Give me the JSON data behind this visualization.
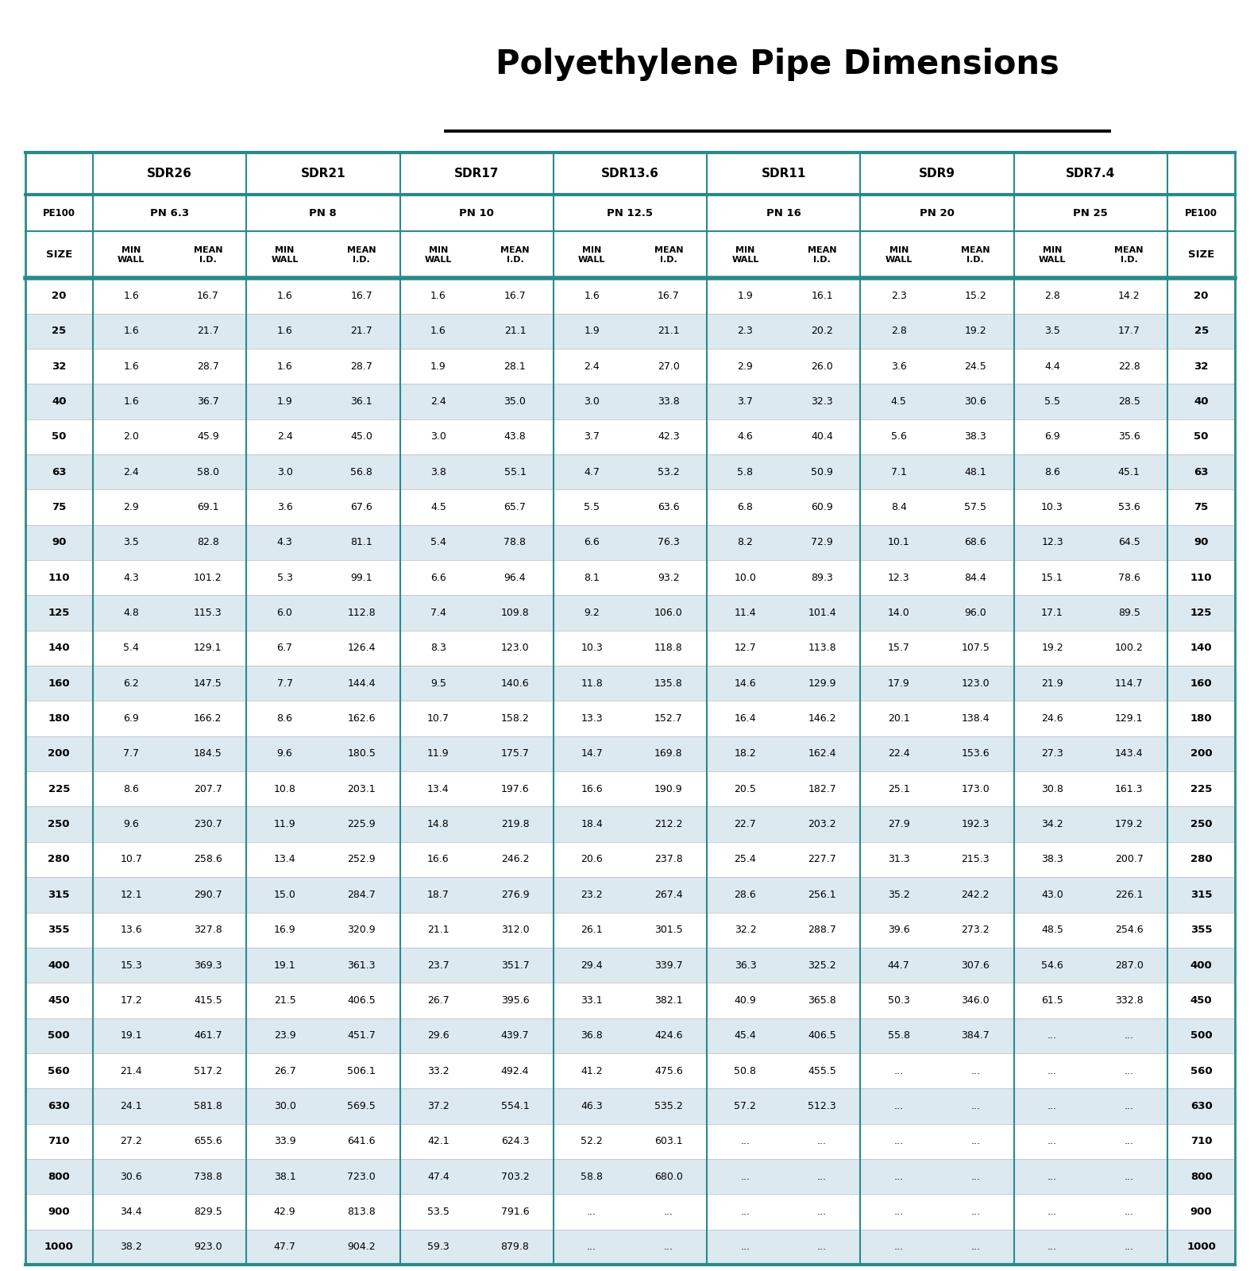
{
  "title": "Polyethylene Pipe Dimensions",
  "sdr_headers": [
    "SDR26",
    "SDR21",
    "SDR17",
    "SDR13.6",
    "SDR11",
    "SDR9",
    "SDR7.4"
  ],
  "pn_headers": [
    "PN 6.3",
    "PN 8",
    "PN 10",
    "PN 12.5",
    "PN 16",
    "PN 20",
    "PN 25"
  ],
  "sizes": [
    20,
    25,
    32,
    40,
    50,
    63,
    75,
    90,
    110,
    125,
    140,
    160,
    180,
    200,
    225,
    250,
    280,
    315,
    355,
    400,
    450,
    500,
    560,
    630,
    710,
    800,
    900,
    1000
  ],
  "data": [
    [
      1.6,
      16.7,
      1.6,
      16.7,
      1.6,
      16.7,
      1.6,
      16.7,
      1.9,
      16.1,
      2.3,
      15.2,
      2.8,
      14.2
    ],
    [
      1.6,
      21.7,
      1.6,
      21.7,
      1.6,
      21.1,
      1.9,
      21.1,
      2.3,
      20.2,
      2.8,
      19.2,
      3.5,
      17.7
    ],
    [
      1.6,
      28.7,
      1.6,
      28.7,
      1.9,
      28.1,
      2.4,
      27.0,
      2.9,
      26.0,
      3.6,
      24.5,
      4.4,
      22.8
    ],
    [
      1.6,
      36.7,
      1.9,
      36.1,
      2.4,
      35.0,
      3.0,
      33.8,
      3.7,
      32.3,
      4.5,
      30.6,
      5.5,
      28.5
    ],
    [
      2.0,
      45.9,
      2.4,
      45.0,
      3.0,
      43.8,
      3.7,
      42.3,
      4.6,
      40.4,
      5.6,
      38.3,
      6.9,
      35.6
    ],
    [
      2.4,
      58.0,
      3.0,
      56.8,
      3.8,
      55.1,
      4.7,
      53.2,
      5.8,
      50.9,
      7.1,
      48.1,
      8.6,
      45.1
    ],
    [
      2.9,
      69.1,
      3.6,
      67.6,
      4.5,
      65.7,
      5.5,
      63.6,
      6.8,
      60.9,
      8.4,
      57.5,
      10.3,
      53.6
    ],
    [
      3.5,
      82.8,
      4.3,
      81.1,
      5.4,
      78.8,
      6.6,
      76.3,
      8.2,
      72.9,
      10.1,
      68.6,
      12.3,
      64.5
    ],
    [
      4.3,
      101.2,
      5.3,
      99.1,
      6.6,
      96.4,
      8.1,
      93.2,
      10.0,
      89.3,
      12.3,
      84.4,
      15.1,
      78.6
    ],
    [
      4.8,
      115.3,
      6.0,
      112.8,
      7.4,
      109.8,
      9.2,
      106.0,
      11.4,
      101.4,
      14.0,
      96.0,
      17.1,
      89.5
    ],
    [
      5.4,
      129.1,
      6.7,
      126.4,
      8.3,
      123.0,
      10.3,
      118.8,
      12.7,
      113.8,
      15.7,
      107.5,
      19.2,
      100.2
    ],
    [
      6.2,
      147.5,
      7.7,
      144.4,
      9.5,
      140.6,
      11.8,
      135.8,
      14.6,
      129.9,
      17.9,
      123.0,
      21.9,
      114.7
    ],
    [
      6.9,
      166.2,
      8.6,
      162.6,
      10.7,
      158.2,
      13.3,
      152.7,
      16.4,
      146.2,
      20.1,
      138.4,
      24.6,
      129.1
    ],
    [
      7.7,
      184.5,
      9.6,
      180.5,
      11.9,
      175.7,
      14.7,
      169.8,
      18.2,
      162.4,
      22.4,
      153.6,
      27.3,
      143.4
    ],
    [
      8.6,
      207.7,
      10.8,
      203.1,
      13.4,
      197.6,
      16.6,
      190.9,
      20.5,
      182.7,
      25.1,
      173.0,
      30.8,
      161.3
    ],
    [
      9.6,
      230.7,
      11.9,
      225.9,
      14.8,
      219.8,
      18.4,
      212.2,
      22.7,
      203.2,
      27.9,
      192.3,
      34.2,
      179.2
    ],
    [
      10.7,
      258.6,
      13.4,
      252.9,
      16.6,
      246.2,
      20.6,
      237.8,
      25.4,
      227.7,
      31.3,
      215.3,
      38.3,
      200.7
    ],
    [
      12.1,
      290.7,
      15.0,
      284.7,
      18.7,
      276.9,
      23.2,
      267.4,
      28.6,
      256.1,
      35.2,
      242.2,
      43.0,
      226.1
    ],
    [
      13.6,
      327.8,
      16.9,
      320.9,
      21.1,
      312.0,
      26.1,
      301.5,
      32.2,
      288.7,
      39.6,
      273.2,
      48.5,
      254.6
    ],
    [
      15.3,
      369.3,
      19.1,
      361.3,
      23.7,
      351.7,
      29.4,
      339.7,
      36.3,
      325.2,
      44.7,
      307.6,
      54.6,
      287.0
    ],
    [
      17.2,
      415.5,
      21.5,
      406.5,
      26.7,
      395.6,
      33.1,
      382.1,
      40.9,
      365.8,
      50.3,
      346.0,
      61.5,
      332.8
    ],
    [
      19.1,
      461.7,
      23.9,
      451.7,
      29.6,
      439.7,
      36.8,
      424.6,
      45.4,
      406.5,
      55.8,
      384.7,
      "...",
      "..."
    ],
    [
      21.4,
      517.2,
      26.7,
      506.1,
      33.2,
      492.4,
      41.2,
      475.6,
      50.8,
      455.5,
      "...",
      "...",
      "...",
      "..."
    ],
    [
      24.1,
      581.8,
      30.0,
      569.5,
      37.2,
      554.1,
      46.3,
      535.2,
      57.2,
      512.3,
      "...",
      "...",
      "...",
      "..."
    ],
    [
      27.2,
      655.6,
      33.9,
      641.6,
      42.1,
      624.3,
      52.2,
      603.1,
      "...",
      "...",
      "...",
      "...",
      "...",
      "..."
    ],
    [
      30.6,
      738.8,
      38.1,
      723.0,
      47.4,
      703.2,
      58.8,
      680.0,
      "...",
      "...",
      "...",
      "...",
      "...",
      "..."
    ],
    [
      34.4,
      829.5,
      42.9,
      813.8,
      53.5,
      791.6,
      "...",
      "...",
      "...",
      "...",
      "...",
      "...",
      "...",
      "..."
    ],
    [
      38.2,
      923.0,
      47.7,
      904.2,
      59.3,
      879.8,
      "...",
      "...",
      "...",
      "...",
      "...",
      "...",
      "...",
      "..."
    ]
  ],
  "teal_color": "#2a8a8a",
  "alt_row_bg": "#dce9f0",
  "white_row_bg": "#ffffff",
  "border_color": "#2a8a8a"
}
